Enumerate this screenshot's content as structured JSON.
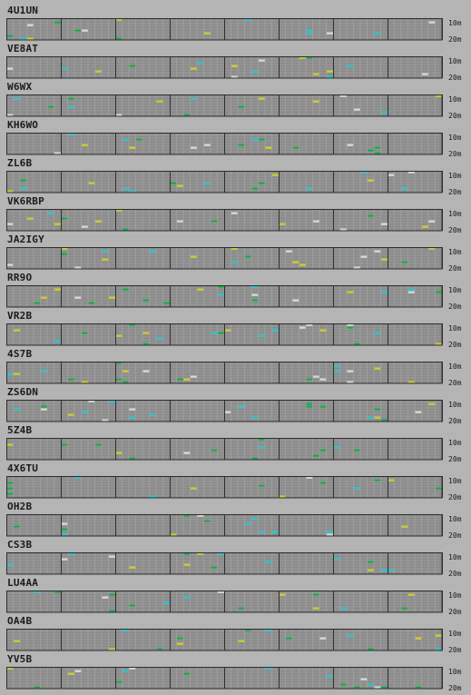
{
  "band_labels": [
    "10m",
    "20m"
  ],
  "colors": {
    "background": "#b4b4b4",
    "cell": "#8a8a8a",
    "fine_grid": "#a8a8a8",
    "hour_divider": "#2e2e2e",
    "signal_yellow": "#cccc22",
    "signal_cyan": "#22c4cc",
    "signal_green": "#18a84a",
    "signal_light": "#d8d8d8"
  },
  "beacons": [
    {
      "callsign": "4U1UN"
    },
    {
      "callsign": "VE8AT"
    },
    {
      "callsign": "W6WX"
    },
    {
      "callsign": "KH6WO"
    },
    {
      "callsign": "ZL6B"
    },
    {
      "callsign": "VK6RBP"
    },
    {
      "callsign": "JA2IGY"
    },
    {
      "callsign": "RR9O"
    },
    {
      "callsign": "VR2B"
    },
    {
      "callsign": "4S7B"
    },
    {
      "callsign": "ZS6DN"
    },
    {
      "callsign": "5Z4B"
    },
    {
      "callsign": "4X6TU"
    },
    {
      "callsign": "OH2B"
    },
    {
      "callsign": "CS3B"
    },
    {
      "callsign": "LU4AA"
    },
    {
      "callsign": "OA4B"
    },
    {
      "callsign": "YV5B"
    }
  ]
}
